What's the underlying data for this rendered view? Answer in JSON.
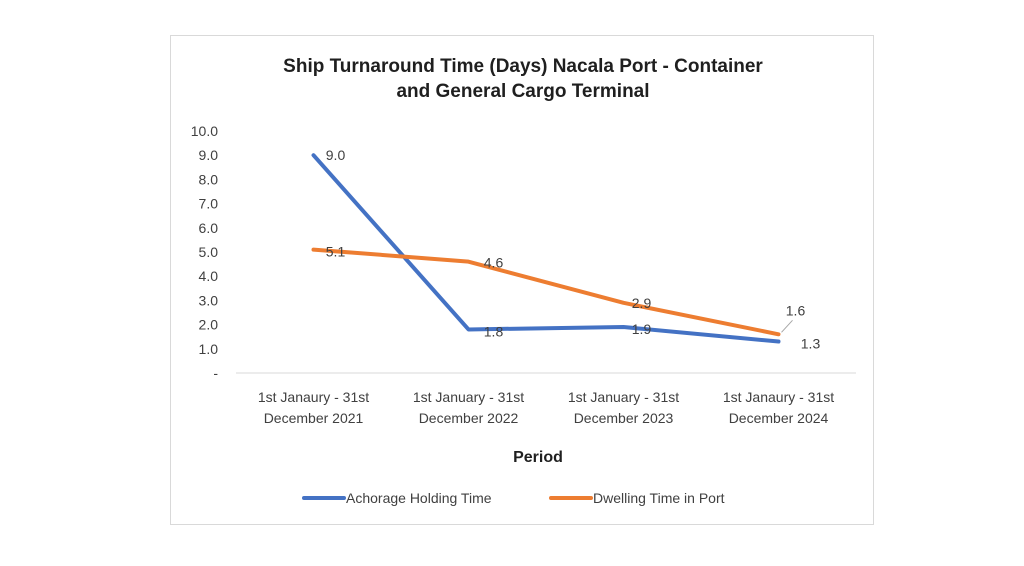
{
  "chart_data": {
    "type": "line",
    "title_lines": [
      "Ship Turnaround Time (Days) Nacala Port - Container",
      "and General Cargo Terminal"
    ],
    "xlabel": "Period",
    "ylabel": "",
    "categories": [
      [
        "1st Janaury - 31st",
        "December 2021"
      ],
      [
        "1st January - 31st",
        "December 2022"
      ],
      [
        "1st January - 31st",
        "December 2023"
      ],
      [
        "1st Janaury - 31st",
        "December 2024"
      ]
    ],
    "y_ticks": [
      "-",
      "1.0",
      "2.0",
      "3.0",
      "4.0",
      "5.0",
      "6.0",
      "7.0",
      "8.0",
      "9.0",
      "10.0"
    ],
    "ylim": [
      0,
      10
    ],
    "grid": false,
    "legend_position": "bottom",
    "series": [
      {
        "name": "Achorage Holding Time",
        "color": "#4472c4",
        "values": [
          9.0,
          1.8,
          1.9,
          1.3
        ],
        "labels": [
          "9.0",
          "1.8",
          "1.9",
          "1.3"
        ]
      },
      {
        "name": "Dwelling Time  in Port",
        "color": "#ed7d31",
        "values": [
          5.1,
          4.6,
          2.9,
          1.6
        ],
        "labels": [
          "5.1",
          "4.6",
          "2.9",
          "1.6"
        ]
      }
    ]
  }
}
